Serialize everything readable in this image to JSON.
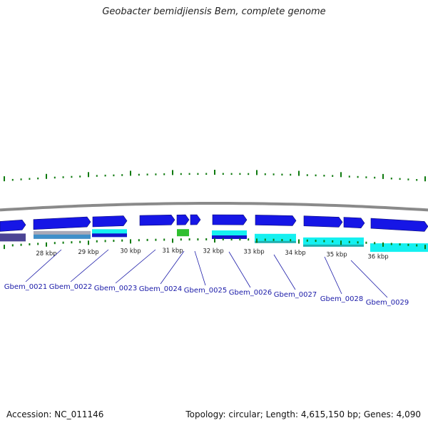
{
  "title": "Geobacter bemidjiensis Bem, complete genome",
  "accession_label": "Accession: NC_011146",
  "summary_label": "Topology: circular; Length: 4,615,150 bp; Genes: 4,090",
  "colors": {
    "gene_forward": "#1616e6",
    "gene_reverse": "#1414cc",
    "cds_cyan": "#15f0f0",
    "cds_teal": "#1fb0b0",
    "cds_purple": "#4b4494",
    "cds_gray": "#a9a9b8",
    "cds_green": "#2fbf2f",
    "gc_skew": "#0e7a0e",
    "backbone": "#8a8a8a",
    "label": "#1a1aa8"
  },
  "scale_ticks": [
    "28 kbp",
    "29 kbp",
    "30 kbp",
    "31 kbp",
    "32 kbp",
    "33 kbp",
    "34 kbp",
    "35 kbp",
    "36 kbp"
  ],
  "gene_labels": [
    "Gbem_0021",
    "Gbem_0022",
    "Gbem_0023",
    "Gbem_0024",
    "Gbem_0025",
    "Gbem_0026",
    "Gbem_0027",
    "Gbem_0028",
    "Gbem_0029"
  ]
}
